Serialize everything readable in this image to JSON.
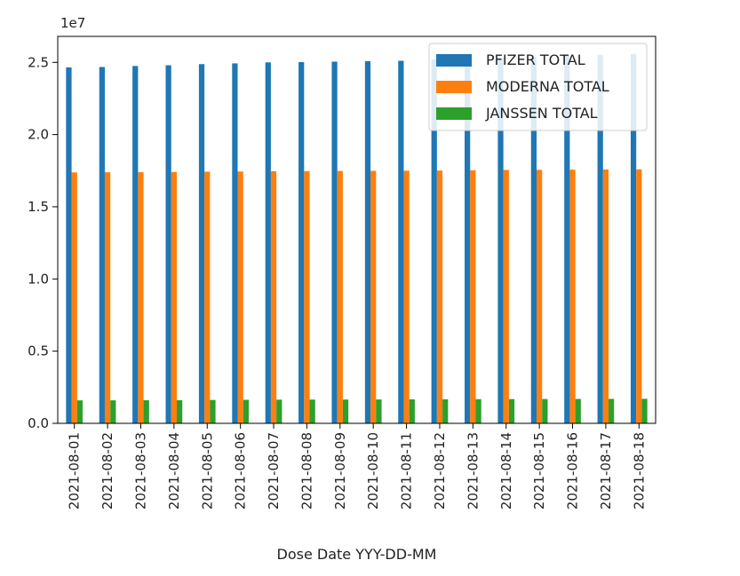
{
  "chart_data": {
    "type": "bar",
    "title": "",
    "xlabel": "Dose Date YYY-DD-MM",
    "ylabel": "",
    "scale_label": "1e7",
    "scale": 10000000,
    "categories": [
      "2021-08-01",
      "2021-08-02",
      "2021-08-03",
      "2021-08-04",
      "2021-08-05",
      "2021-08-06",
      "2021-08-07",
      "2021-08-08",
      "2021-08-09",
      "2021-08-10",
      "2021-08-11",
      "2021-08-12",
      "2021-08-13",
      "2021-08-14",
      "2021-08-15",
      "2021-08-16",
      "2021-08-17",
      "2021-08-18"
    ],
    "yticks": [
      "0.0",
      "0.5",
      "1.0",
      "1.5",
      "2.0",
      "2.5"
    ],
    "ylim": [
      0,
      26800000
    ],
    "legend_position": "top-right",
    "grid": false,
    "series": [
      {
        "name": "PFIZER TOTAL",
        "color": "#1f77b4",
        "values": [
          24650000,
          24680000,
          24750000,
          24800000,
          24880000,
          24930000,
          25000000,
          25020000,
          25050000,
          25080000,
          25110000,
          25200000,
          25250000,
          25300000,
          25380000,
          25450000,
          25520000,
          25580000
        ]
      },
      {
        "name": "MODERNA TOTAL",
        "color": "#ff7f0e",
        "values": [
          17380000,
          17390000,
          17400000,
          17410000,
          17430000,
          17440000,
          17460000,
          17470000,
          17480000,
          17490000,
          17500000,
          17510000,
          17530000,
          17550000,
          17560000,
          17570000,
          17580000,
          17590000
        ]
      },
      {
        "name": "JANSSEN TOTAL",
        "color": "#2ca02c",
        "values": [
          1590000,
          1595000,
          1600000,
          1605000,
          1620000,
          1630000,
          1640000,
          1645000,
          1650000,
          1655000,
          1660000,
          1670000,
          1675000,
          1680000,
          1685000,
          1690000,
          1695000,
          1700000
        ]
      }
    ]
  }
}
